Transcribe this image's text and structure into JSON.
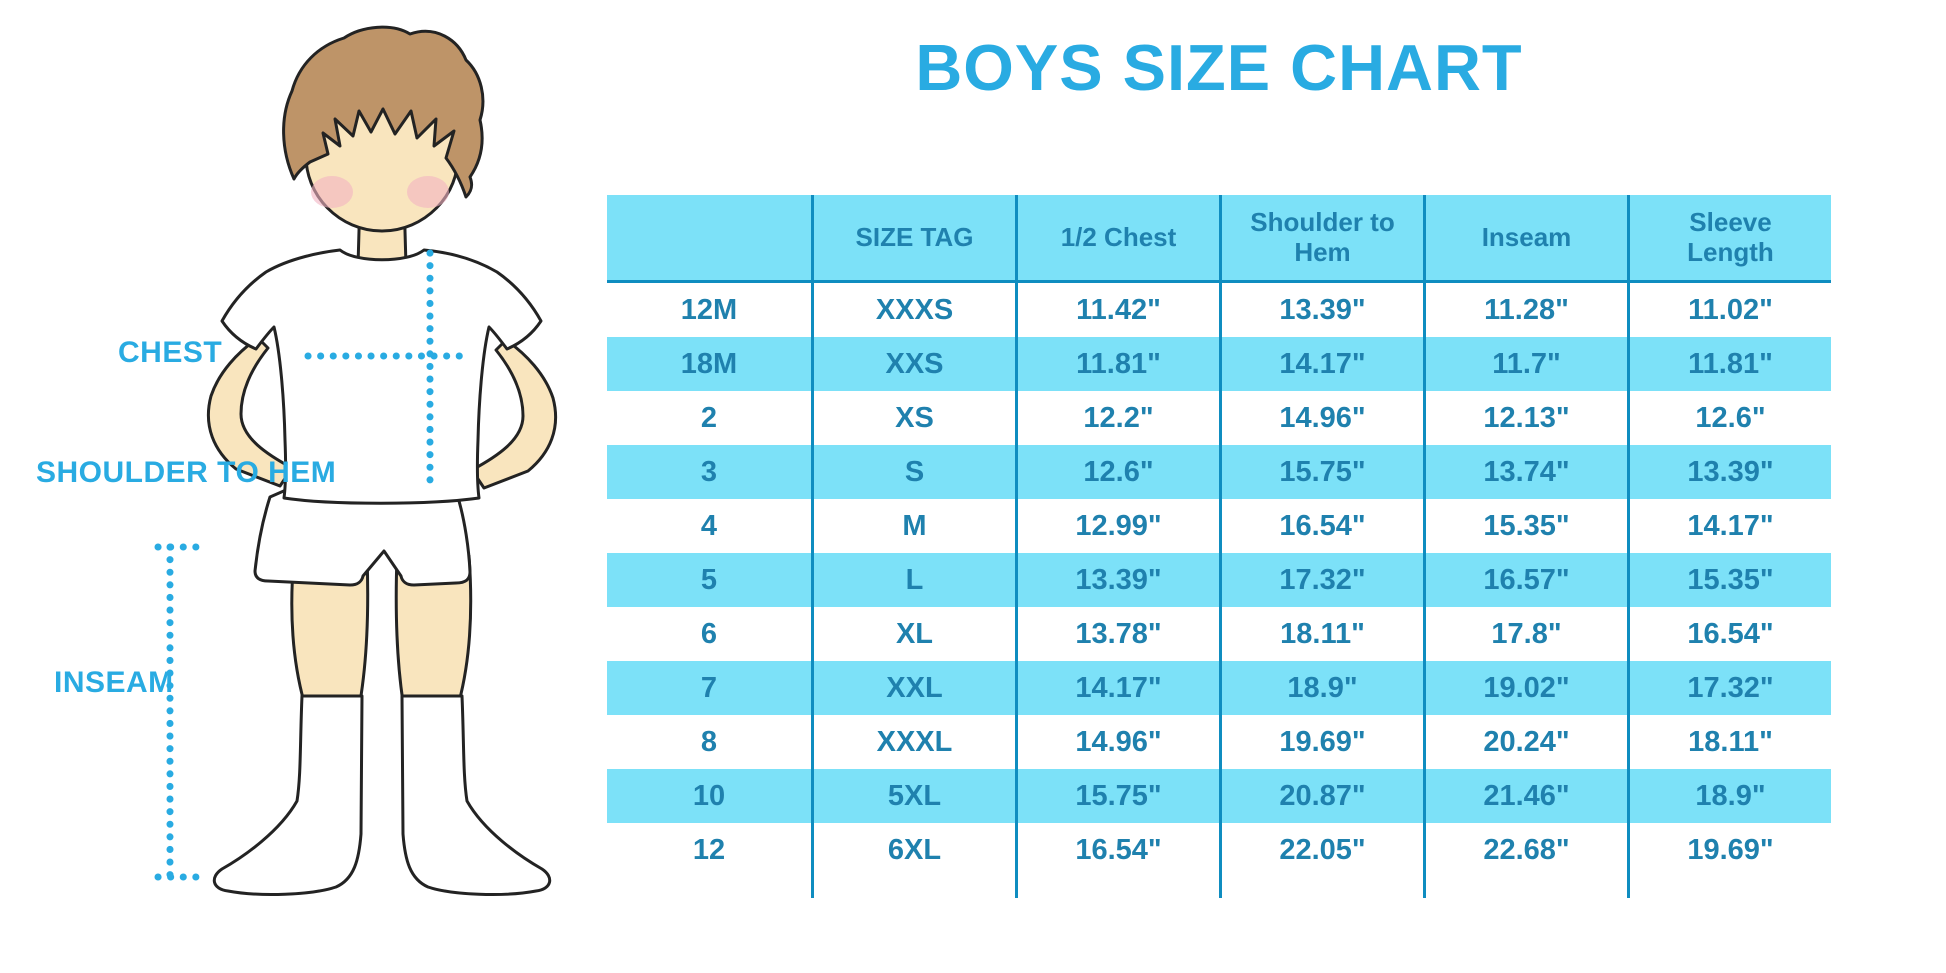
{
  "title": "BOYS SIZE CHART",
  "measurement_labels": {
    "chest": "CHEST",
    "shoulder_to_hem": "SHOULDER TO HEM",
    "inseam": "INSEAM"
  },
  "illustration": {
    "description": "cartoon boy in white t-shirt, white shorts and white knee socks with measurement guide dotted lines"
  },
  "colors": {
    "accent_blue": "#29ABE2",
    "table_fill": "#7CE1F8",
    "table_text": "#1F81AE",
    "table_line": "#0F8DC0",
    "skin": "#F9E5BE",
    "hair": "#BE9468",
    "blush": "#F2B2C1",
    "outline": "#232323"
  },
  "chart_data": {
    "type": "table",
    "title": "BOYS SIZE CHART",
    "columns": [
      "",
      "SIZE TAG",
      "1/2 Chest",
      "Shoulder to Hem",
      "Inseam",
      "Sleeve Length"
    ],
    "rows": [
      [
        "12M",
        "XXXS",
        "11.42\"",
        "13.39\"",
        "11.28\"",
        "11.02\""
      ],
      [
        "18M",
        "XXS",
        "11.81\"",
        "14.17\"",
        "11.7\"",
        "11.81\""
      ],
      [
        "2",
        "XS",
        "12.2\"",
        "14.96\"",
        "12.13\"",
        "12.6\""
      ],
      [
        "3",
        "S",
        "12.6\"",
        "15.75\"",
        "13.74\"",
        "13.39\""
      ],
      [
        "4",
        "M",
        "12.99\"",
        "16.54\"",
        "15.35\"",
        "14.17\""
      ],
      [
        "5",
        "L",
        "13.39\"",
        "17.32\"",
        "16.57\"",
        "15.35\""
      ],
      [
        "6",
        "XL",
        "13.78\"",
        "18.11\"",
        "17.8\"",
        "16.54\""
      ],
      [
        "7",
        "XXL",
        "14.17\"",
        "18.9\"",
        "19.02\"",
        "17.32\""
      ],
      [
        "8",
        "XXXL",
        "14.96\"",
        "19.69\"",
        "20.24\"",
        "18.11\""
      ],
      [
        "10",
        "5XL",
        "15.75\"",
        "20.87\"",
        "21.46\"",
        "18.9\""
      ],
      [
        "12",
        "6XL",
        "16.54\"",
        "22.05\"",
        "22.68\"",
        "19.69\""
      ]
    ],
    "stripe_pattern": "header filled; data rows alternate white / light-cyan starting with white",
    "grid": "vertical column separators and single rule under header"
  }
}
